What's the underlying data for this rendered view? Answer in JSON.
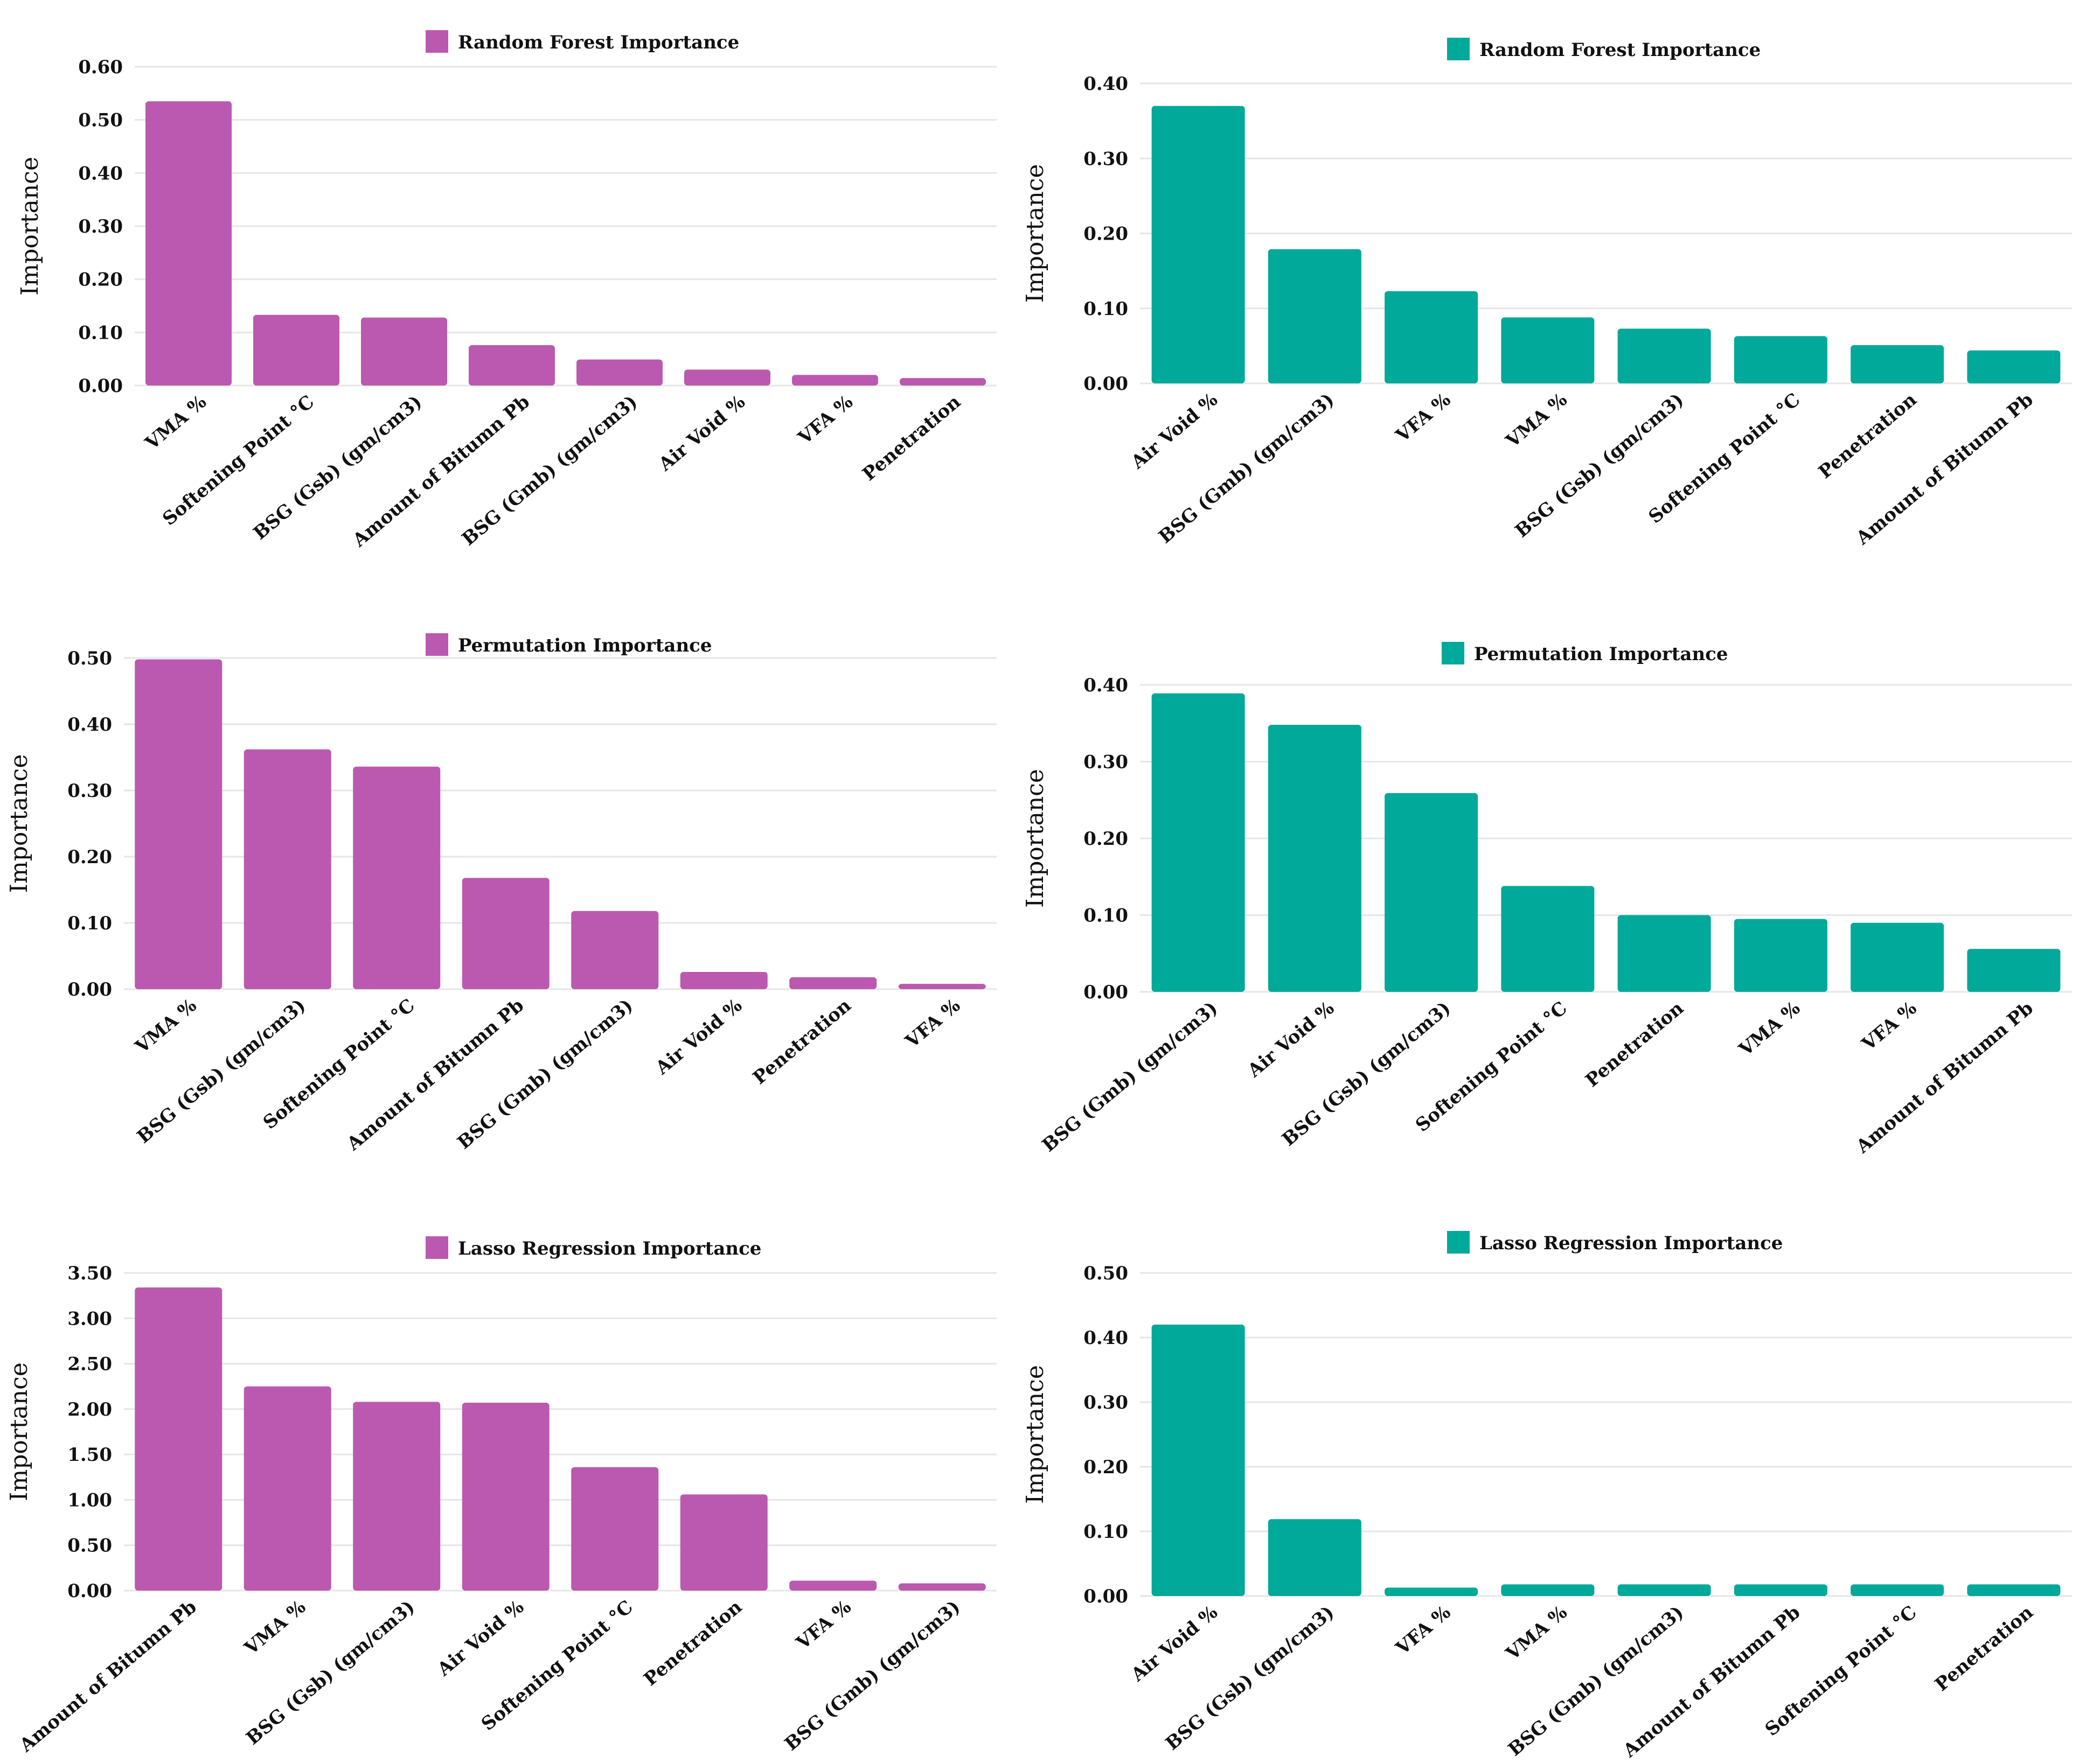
{
  "colors": {
    "magenta": "#bb59b0",
    "teal": "#00a99a"
  },
  "chart_data": [
    {
      "id": "rf-left",
      "type": "bar",
      "color": "#bb59b0",
      "title": "Random Forest Importance",
      "ylabel": "Importance",
      "xlabel": "",
      "ylim": [
        0,
        0.6
      ],
      "yticks": [
        "0.00",
        "0.10",
        "0.20",
        "0.30",
        "0.40",
        "0.50",
        "0.60"
      ],
      "categories": [
        "VMA %",
        "Softening Point °C",
        "BSG (Gsb) (gm/cm3)",
        "Amount of Bitumn Pb",
        "BSG (Gmb) (gm/cm3)",
        "Air Void %",
        "VFA %",
        "Penetration"
      ],
      "values": [
        0.535,
        0.133,
        0.128,
        0.076,
        0.049,
        0.03,
        0.02,
        0.014
      ],
      "legend": "top-center",
      "grid": true
    },
    {
      "id": "rf-right",
      "type": "bar",
      "color": "#00a99a",
      "title": "Random Forest Importance",
      "ylabel": "Importance",
      "xlabel": "",
      "ylim": [
        0,
        0.4
      ],
      "yticks": [
        "0.00",
        "0.10",
        "0.20",
        "0.30",
        "0.40"
      ],
      "categories": [
        "Air Void %",
        "BSG (Gmb) (gm/cm3)",
        "VFA %",
        "VMA %",
        "BSG (Gsb) (gm/cm3)",
        "Softening Point °C",
        "Penetration",
        "Amount of Bitumn Pb"
      ],
      "values": [
        0.37,
        0.179,
        0.123,
        0.088,
        0.073,
        0.063,
        0.051,
        0.044
      ],
      "legend": "top-center",
      "grid": true
    },
    {
      "id": "perm-left",
      "type": "bar",
      "color": "#bb59b0",
      "title": "Permutation Importance",
      "ylabel": "Importance",
      "xlabel": "",
      "ylim": [
        0,
        0.5
      ],
      "yticks": [
        "0.00",
        "0.10",
        "0.20",
        "0.30",
        "0.40",
        "0.50"
      ],
      "categories": [
        "VMA %",
        "BSG (Gsb) (gm/cm3)",
        "Softening Point °C",
        "Amount of Bitumn Pb",
        "BSG (Gmb) (gm/cm3)",
        "Air Void %",
        "Penetration",
        "VFA %"
      ],
      "values": [
        0.498,
        0.362,
        0.336,
        0.168,
        0.118,
        0.026,
        0.018,
        0.008
      ],
      "legend": "top-center",
      "grid": true
    },
    {
      "id": "perm-right",
      "type": "bar",
      "color": "#00a99a",
      "title": "Permutation Importance",
      "ylabel": "Importance",
      "xlabel": "",
      "ylim": [
        0,
        0.4
      ],
      "yticks": [
        "0.00",
        "0.10",
        "0.20",
        "0.30",
        "0.40"
      ],
      "categories": [
        "BSG (Gmb) (gm/cm3)",
        "Air Void %",
        "BSG (Gsb) (gm/cm3)",
        "Softening Point °C",
        "Penetration",
        "VMA %",
        "VFA %",
        "Amount of Bitumn Pb"
      ],
      "values": [
        0.389,
        0.348,
        0.259,
        0.138,
        0.1,
        0.095,
        0.09,
        0.056
      ],
      "legend": "top-center",
      "grid": true
    },
    {
      "id": "lasso-left",
      "type": "bar",
      "color": "#bb59b0",
      "title": "Lasso Regression Importance",
      "ylabel": "Importance",
      "xlabel": "",
      "ylim": [
        0,
        3.5
      ],
      "yticks": [
        "0.00",
        "0.50",
        "1.00",
        "1.50",
        "2.00",
        "2.50",
        "3.00",
        "3.50"
      ],
      "categories": [
        "Amount of Bitumn Pb",
        "VMA %",
        "BSG (Gsb) (gm/cm3)",
        "Air Void %",
        "Softening Point °C",
        "Penetration",
        "VFA %",
        "BSG (Gmb) (gm/cm3)"
      ],
      "values": [
        3.34,
        2.25,
        2.08,
        2.07,
        1.36,
        1.06,
        0.11,
        0.08
      ],
      "legend": "top-center",
      "grid": true
    },
    {
      "id": "lasso-right",
      "type": "bar",
      "color": "#00a99a",
      "title": "Lasso Regression Importance",
      "ylabel": "Importance",
      "xlabel": "",
      "ylim": [
        0,
        0.5
      ],
      "yticks": [
        "0.00",
        "0.10",
        "0.20",
        "0.30",
        "0.40",
        "0.50"
      ],
      "categories": [
        "Air Void %",
        "BSG (Gsb) (gm/cm3)",
        "VFA %",
        "VMA %",
        "BSG (Gmb) (gm/cm3)",
        "Amount of Bitumn Pb",
        "Softening Point °C",
        "Penetration"
      ],
      "values": [
        0.42,
        0.119,
        0.013,
        0.018,
        0.018,
        0.018,
        0.018,
        0.018
      ],
      "legend": "top-center",
      "grid": true
    }
  ]
}
